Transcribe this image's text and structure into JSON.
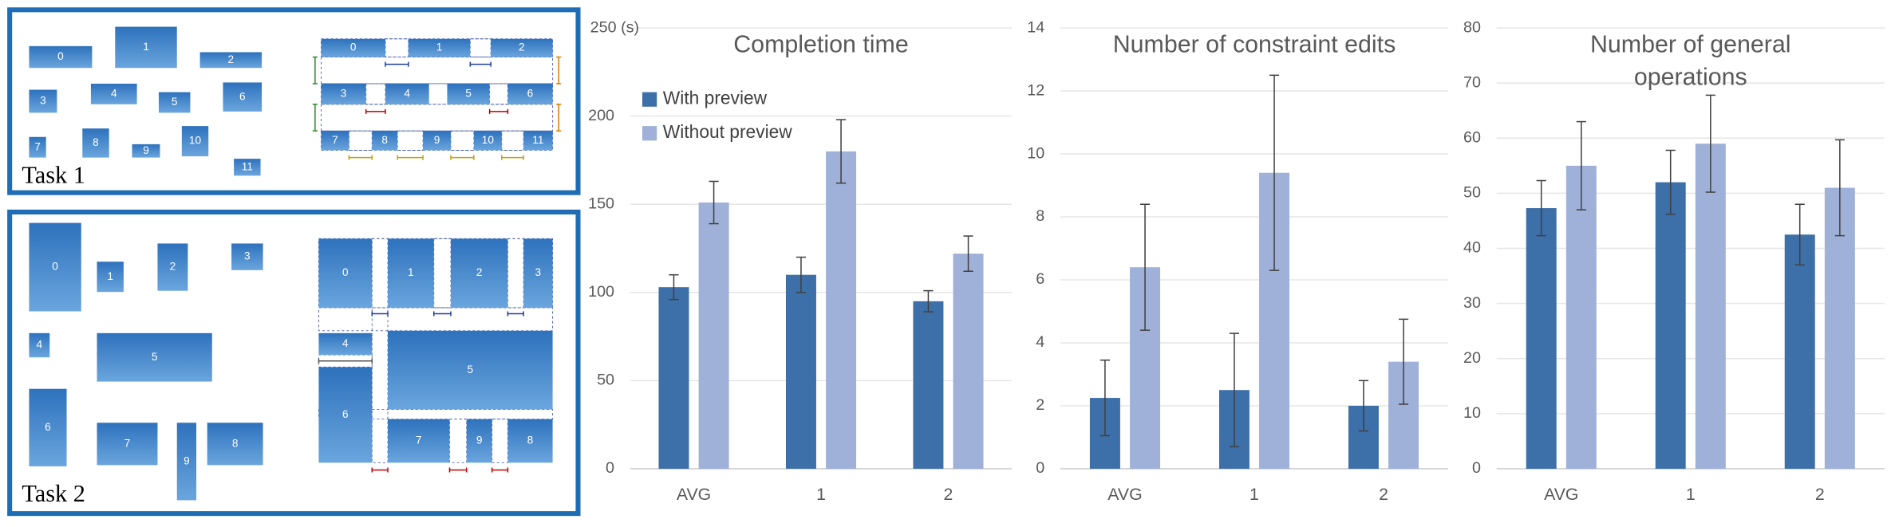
{
  "panels": [
    {
      "label": "Task 1",
      "boxes": [
        "0",
        "1",
        "2",
        "3",
        "4",
        "5",
        "6",
        "7",
        "8",
        "9",
        "10",
        "11"
      ]
    },
    {
      "label": "Task 2",
      "boxes": [
        "0",
        "1",
        "2",
        "3",
        "4",
        "5",
        "6",
        "7",
        "8",
        "9"
      ]
    }
  ],
  "chart_data": [
    {
      "type": "bar",
      "title": "Completion time",
      "categories": [
        "AVG",
        "1",
        "2"
      ],
      "series": [
        {
          "name": "With preview",
          "color": "#3d6fa9",
          "values": [
            103,
            110,
            95
          ],
          "errors": [
            7,
            10,
            6
          ]
        },
        {
          "name": "Without preview",
          "color": "#9fb1d8",
          "values": [
            151,
            180,
            122
          ],
          "errors": [
            12,
            18,
            10
          ]
        }
      ],
      "ylim": [
        0,
        250
      ],
      "yticks": [
        0,
        50,
        100,
        150,
        200,
        {
          "value": 250,
          "label": "250 (s)"
        }
      ],
      "grid": true,
      "legend": "upper left"
    },
    {
      "type": "bar",
      "title": "Number of constraint edits",
      "categories": [
        "AVG",
        "1",
        "2"
      ],
      "series": [
        {
          "color": "#3d6fa9",
          "values": [
            2.25,
            2.5,
            2.0
          ],
          "errors": [
            1.2,
            1.8,
            0.8
          ]
        },
        {
          "color": "#9fb1d8",
          "values": [
            6.4,
            9.4,
            3.4
          ],
          "errors": [
            2.0,
            3.1,
            1.35
          ]
        }
      ],
      "ylim": [
        0,
        14
      ],
      "yticks": [
        0,
        2,
        4,
        6,
        8,
        10,
        12,
        14
      ],
      "grid": true
    },
    {
      "type": "bar",
      "title": "Number of general operations",
      "categories": [
        "AVG",
        "1",
        "2"
      ],
      "series": [
        {
          "color": "#3d6fa9",
          "values": [
            47.3,
            52,
            42.5
          ],
          "errors": [
            5,
            5.8,
            5.5
          ]
        },
        {
          "color": "#9fb1d8",
          "values": [
            55,
            59,
            51
          ],
          "errors": [
            8,
            8.8,
            8.7
          ]
        }
      ],
      "ylim": [
        0,
        80
      ],
      "yticks": [
        0,
        10,
        20,
        30,
        40,
        50,
        60,
        70,
        80
      ],
      "grid": true
    }
  ]
}
